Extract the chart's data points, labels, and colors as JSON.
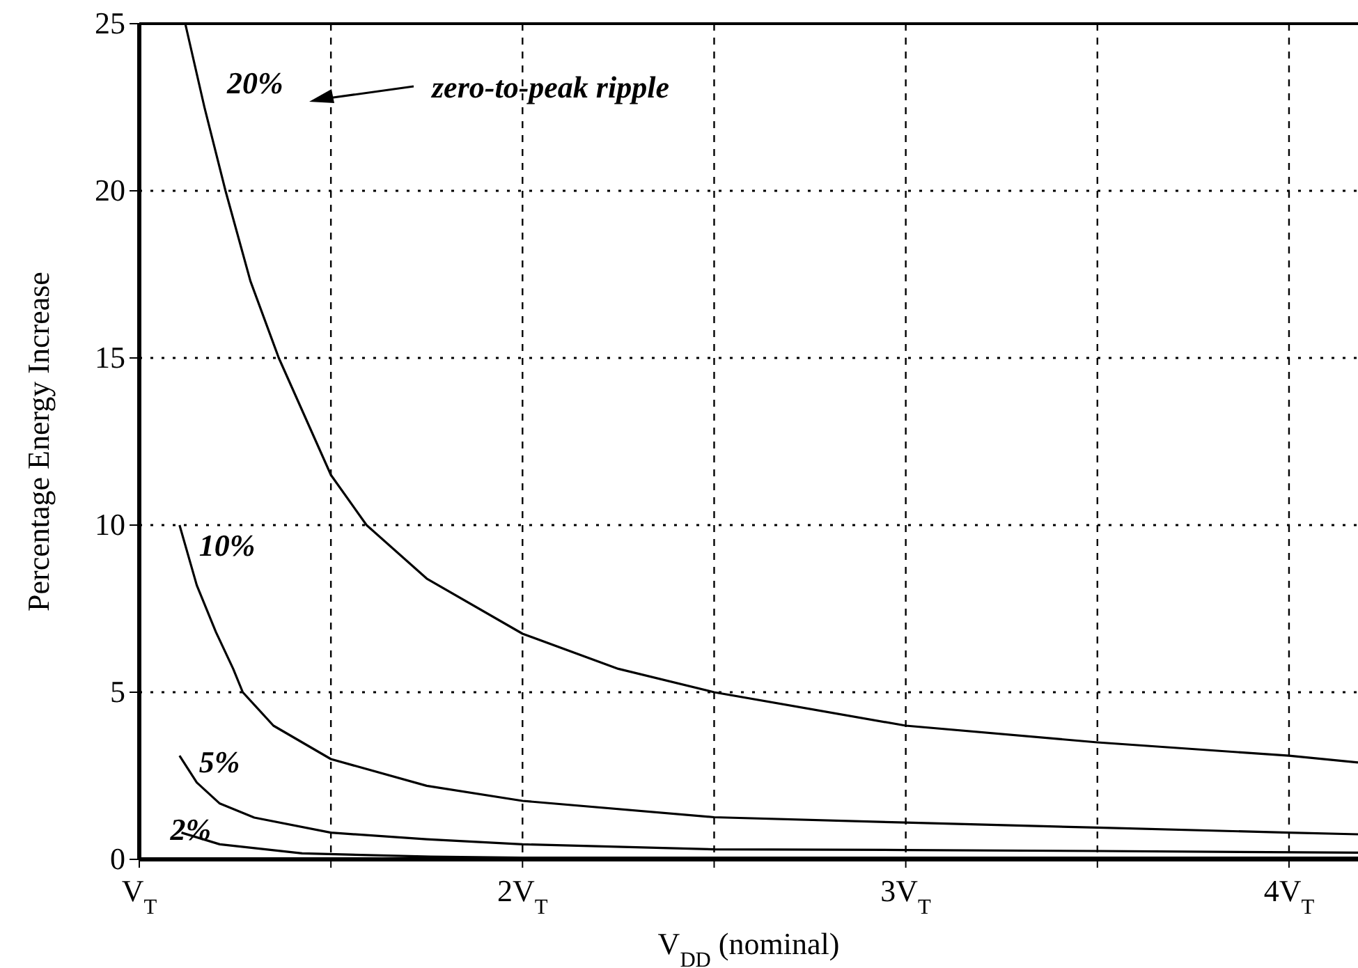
{
  "chart_data": {
    "type": "line",
    "xlabel": "V$_{DD}$ (nominal)",
    "ylabel": "Percentage Energy Increase",
    "xlim": [
      1,
      4.18
    ],
    "ylim": [
      0,
      25
    ],
    "xticks": [
      {
        "value": 1,
        "label": "V$_{T}$"
      },
      {
        "value": 1.5,
        "label": null
      },
      {
        "value": 2,
        "label": "2V$_{T}$"
      },
      {
        "value": 2.5,
        "label": null
      },
      {
        "value": 3,
        "label": "3V$_{T}$"
      },
      {
        "value": 3.5,
        "label": null
      },
      {
        "value": 4,
        "label": "4V$_{T}$"
      }
    ],
    "yticks": [
      0,
      5,
      10,
      15,
      20,
      25
    ],
    "grid": true,
    "line_style": "solid",
    "marker": "none",
    "annotations": [
      "zero-to-peak ripple"
    ],
    "series": [
      {
        "name": "20%",
        "color": "#000000",
        "x": [
          1.12,
          1.17,
          1.225,
          1.29,
          1.364,
          1.5,
          1.593,
          1.75,
          2,
          2.25,
          2.5,
          3,
          3.5,
          4,
          4.18
        ],
        "values": [
          25,
          22.5,
          20,
          17.3,
          15,
          11.5,
          10,
          8.4,
          6.75,
          5.7,
          5,
          4,
          3.5,
          3.1,
          2.9
        ]
      },
      {
        "name": "10%",
        "color": "#000000",
        "x": [
          1.105,
          1.15,
          1.2,
          1.245,
          1.27,
          1.35,
          1.5,
          1.75,
          2,
          2.5,
          3,
          3.5,
          4,
          4.18
        ],
        "values": [
          10,
          8.2,
          6.8,
          5.7,
          5,
          4,
          3,
          2.2,
          1.75,
          1.26,
          1.1,
          0.95,
          0.8,
          0.75
        ]
      },
      {
        "name": "5%",
        "color": "#000000",
        "x": [
          1.105,
          1.15,
          1.21,
          1.3,
          1.5,
          1.75,
          2,
          2.5,
          3,
          3.5,
          4.18
        ],
        "values": [
          3.1,
          2.3,
          1.67,
          1.25,
          0.8,
          0.6,
          0.45,
          0.3,
          0.28,
          0.25,
          0.2
        ]
      },
      {
        "name": "2%",
        "color": "#000000",
        "x": [
          1.11,
          1.21,
          1.425,
          1.76,
          2,
          3,
          4.18
        ],
        "values": [
          0.8,
          0.45,
          0.18,
          0.08,
          0.05,
          0.05,
          0.05
        ]
      }
    ]
  }
}
